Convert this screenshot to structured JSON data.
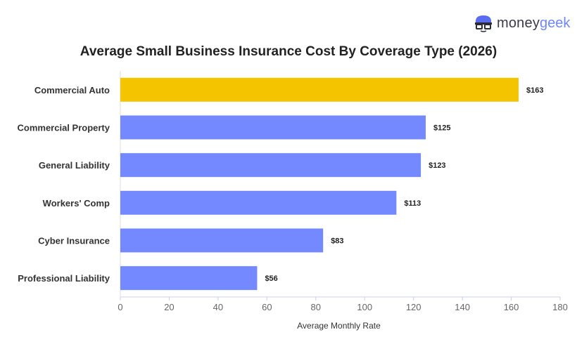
{
  "brand": {
    "part1": "money",
    "part2": "geek"
  },
  "chart_data": {
    "type": "bar",
    "orientation": "horizontal",
    "title": "Average Small Business Insurance Cost By Coverage Type (2026)",
    "xlabel": "Average Monthly Rate",
    "ylabel": "",
    "categories": [
      "Commercial Auto",
      "Commercial Property",
      "General Liability",
      "Workers' Comp",
      "Cyber Insurance",
      "Professional Liability"
    ],
    "values": [
      163,
      125,
      123,
      113,
      83,
      56
    ],
    "data_labels": [
      "$163",
      "$125",
      "$123",
      "$113",
      "$83",
      "$56"
    ],
    "xlim": [
      0,
      180
    ],
    "xticks": [
      0,
      20,
      40,
      60,
      80,
      100,
      120,
      140,
      160,
      180
    ],
    "grid": false,
    "colors": {
      "highlight": "#f5c400",
      "default": "#7489ff"
    },
    "highlight_index": 0
  }
}
